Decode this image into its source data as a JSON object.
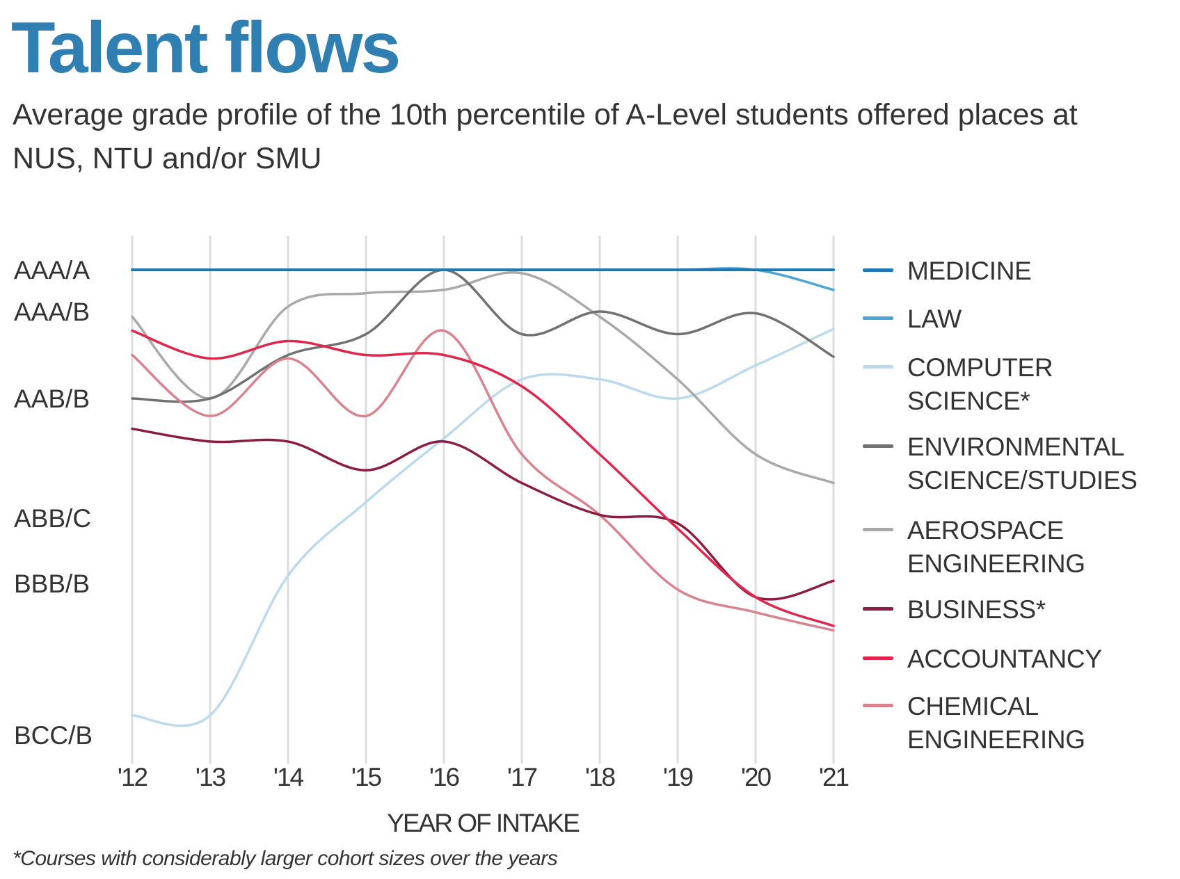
{
  "header": {
    "title": "Talent flows",
    "subtitle": "Average grade profile of the 10th percentile of A-Level students offered places at NUS, NTU and/or SMU"
  },
  "footnote": "*Courses with considerably larger cohort sizes over the years",
  "chart_data": {
    "type": "line",
    "title": "Talent flows",
    "xlabel": "YEAR OF INTAKE",
    "ylabel": "",
    "x": [
      "'12",
      "'13",
      "'14",
      "'15",
      "'16",
      "'17",
      "'18",
      "'19",
      "'20",
      "'21"
    ],
    "y_ticks": [
      {
        "label": "AAA/A",
        "value": 70
      },
      {
        "label": "AAA/B",
        "value": 68.75
      },
      {
        "label": "AAB/B",
        "value": 66.25
      },
      {
        "label": "ABB/C",
        "value": 62.5
      },
      {
        "label": "BBB/B",
        "value": 61.25
      },
      {
        "label": "BCC/B",
        "value": 56.25
      }
    ],
    "grid": "vertical",
    "legend": "right",
    "smooth": true,
    "series": [
      {
        "name": "MEDICINE",
        "color": "#1f78b4",
        "values": [
          70,
          70,
          70,
          70,
          70,
          70,
          70,
          70,
          70,
          70
        ]
      },
      {
        "name": "LAW",
        "color": "#4ba6d6",
        "values": [
          70,
          70,
          70,
          70,
          70,
          70,
          70,
          70,
          70,
          69.4
        ]
      },
      {
        "name": "COMPUTER\nSCIENCE*",
        "color": "#bcdaee",
        "values": [
          56.9,
          56.9,
          61.4,
          63.0,
          65.0,
          66.8,
          66.8,
          66.25,
          67.2,
          68.25
        ]
      },
      {
        "name": "ENVIRONMENTAL\nSCIENCE/STUDIES",
        "color": "#717171",
        "values": [
          66.25,
          66.25,
          67.5,
          68.1,
          70,
          68.1,
          68.75,
          68.1,
          68.7,
          67.45
        ]
      },
      {
        "name": "AEROSPACE\nENGINEERING",
        "color": "#a9a9a9",
        "values": [
          68.6,
          66.25,
          68.9,
          69.3,
          69.4,
          69.9,
          68.6,
          66.8,
          64.5,
          63.6
        ]
      },
      {
        "name": "BUSINESS*",
        "color": "#8c1c41",
        "values": [
          65.3,
          64.9,
          64.9,
          64.0,
          64.9,
          63.6,
          62.6,
          62.4,
          60.8,
          61.3
        ]
      },
      {
        "name": "ACCOUNTANCY",
        "color": "#e0264c",
        "values": [
          68.2,
          67.4,
          67.9,
          67.5,
          67.5,
          66.6,
          64.5,
          62.3,
          60.8,
          59.85
        ]
      },
      {
        "name": "CHEMICAL\nENGINEERING",
        "color": "#d9838f",
        "values": [
          67.5,
          65.7,
          67.4,
          65.7,
          68.2,
          64.5,
          62.6,
          61.05,
          60.3,
          59.7
        ]
      }
    ]
  }
}
